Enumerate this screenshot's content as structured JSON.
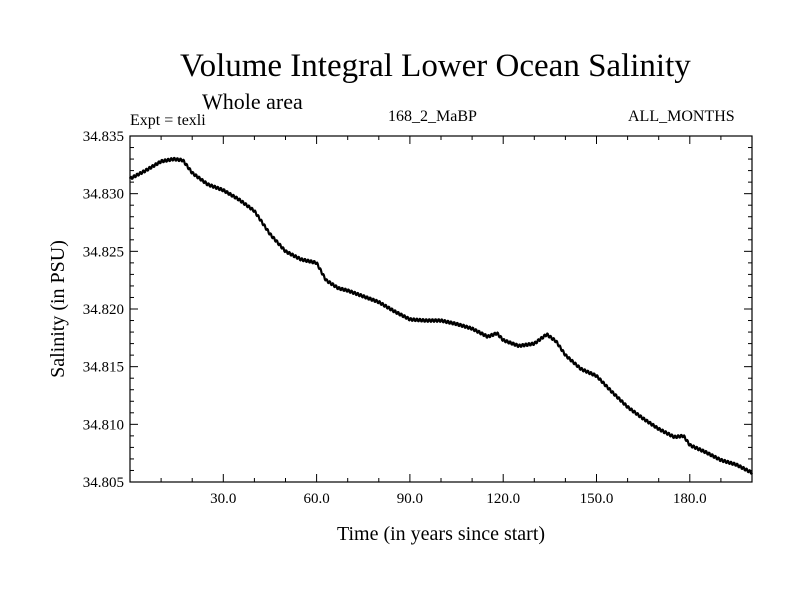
{
  "chart_data": {
    "type": "line",
    "title": "Volume Integral Lower Ocean Salinity",
    "subtitle": "Whole area",
    "annotations": {
      "left": "Expt = texli",
      "center": "168_2_MaBP",
      "right": "ALL_MONTHS"
    },
    "xlabel": "Time (in years since start)",
    "ylabel": "Salinity (in PSU)",
    "xlim": [
      0,
      200
    ],
    "ylim": [
      34.805,
      34.835
    ],
    "xticks": [
      30,
      60,
      90,
      120,
      150,
      180
    ],
    "xtick_labels": [
      "30.0",
      "60.0",
      "90.0",
      "120.0",
      "150.0",
      "180.0"
    ],
    "yticks": [
      34.805,
      34.81,
      34.815,
      34.82,
      34.825,
      34.83,
      34.835
    ],
    "ytick_labels": [
      "34.805",
      "34.810",
      "34.815",
      "34.820",
      "34.825",
      "34.830",
      "34.835"
    ],
    "series": [
      {
        "name": "salinity",
        "x": [
          0,
          5,
          10,
          14,
          17,
          20,
          25,
          30,
          35,
          40,
          45,
          50,
          55,
          60,
          63,
          67,
          70,
          75,
          80,
          85,
          90,
          95,
          100,
          105,
          110,
          115,
          118,
          120,
          125,
          130,
          134,
          137,
          140,
          145,
          150,
          155,
          160,
          165,
          170,
          175,
          178,
          180,
          185,
          190,
          195,
          200
        ],
        "values": [
          34.8313,
          34.832,
          34.8328,
          34.833,
          34.8329,
          34.8318,
          34.8308,
          34.8303,
          34.8295,
          34.8285,
          34.8265,
          34.825,
          34.8243,
          34.824,
          34.8225,
          34.8218,
          34.8216,
          34.8211,
          34.8206,
          34.8198,
          34.8191,
          34.819,
          34.819,
          34.8187,
          34.8183,
          34.8176,
          34.8179,
          34.8173,
          34.8168,
          34.817,
          34.8178,
          34.8172,
          34.816,
          34.8148,
          34.8142,
          34.8128,
          34.8115,
          34.8105,
          34.8096,
          34.8089,
          34.809,
          34.8082,
          34.8076,
          34.8069,
          34.8065,
          34.8058
        ]
      }
    ]
  }
}
